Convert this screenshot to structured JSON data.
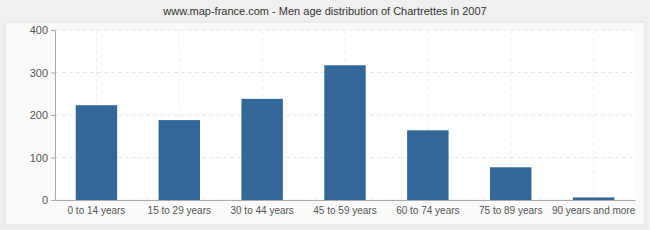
{
  "chart_data": {
    "type": "bar",
    "title": "www.map-france.com - Men age distribution of Chartrettes in 2007",
    "categories": [
      "0 to 14 years",
      "15 to 29 years",
      "30 to 44 years",
      "45 to 59 years",
      "60 to 74 years",
      "75 to 89 years",
      "90 years and more"
    ],
    "values": [
      223,
      188,
      238,
      317,
      164,
      77,
      6
    ],
    "color": "#336699",
    "ylim": [
      0,
      400
    ],
    "yticks": [
      0,
      100,
      200,
      300,
      400
    ],
    "grid": true
  }
}
